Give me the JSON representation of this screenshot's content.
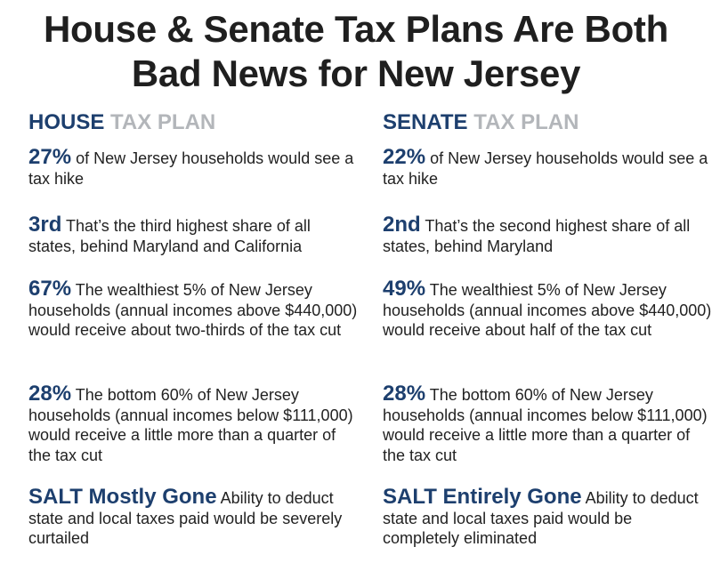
{
  "title": {
    "line1": "House & Senate Tax Plans Are Both",
    "line2": "Bad News for New Jersey"
  },
  "house": {
    "heading_strong": "HOUSE",
    "heading_light": "TAX PLAN",
    "items": [
      {
        "stat": "27%",
        "text": "of New Jersey households would see a tax hike"
      },
      {
        "stat": "3rd",
        "text": "That’s the third highest share of all states, behind Maryland and California"
      },
      {
        "stat": "67%",
        "text": "The wealthiest 5% of New Jersey households (annual incomes above $440,000) would receive about two-thirds of the tax cut"
      },
      {
        "stat": "28%",
        "text": "The bottom 60% of New Jersey households (annual incomes below $111,000) would receive a little more than a quarter of the tax cut"
      },
      {
        "stat": "SALT Mostly Gone",
        "text": "Ability to deduct state and local taxes paid would be severely curtailed"
      }
    ]
  },
  "senate": {
    "heading_strong": "SENATE",
    "heading_light": "TAX PLAN",
    "items": [
      {
        "stat": "22%",
        "text": "of New Jersey households would see a tax hike"
      },
      {
        "stat": "2nd",
        "text": "That’s the second highest share of all states, behind Maryland"
      },
      {
        "stat": "49%",
        "text": "The wealthiest 5% of New Jersey households (annual incomes above $440,000) would receive about half of the tax cut"
      },
      {
        "stat": "28%",
        "text": "The bottom 60% of New Jersey households (annual incomes below $111,000) would receive a little more than a quarter of the tax cut"
      },
      {
        "stat": "SALT Entirely Gone",
        "text": "Ability to deduct state and local taxes paid would be completely eliminated"
      }
    ]
  }
}
